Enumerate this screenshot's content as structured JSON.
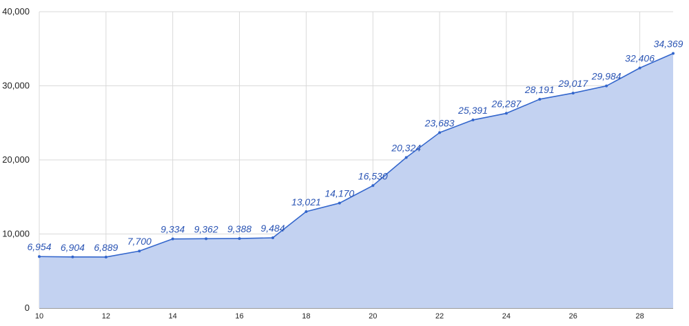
{
  "chart_data": {
    "type": "area",
    "title": "",
    "xlabel": "",
    "ylabel": "",
    "x": [
      10,
      11,
      12,
      13,
      14,
      15,
      16,
      17,
      18,
      19,
      20,
      21,
      22,
      23,
      24,
      25,
      26,
      27,
      28,
      29
    ],
    "series": [
      {
        "values": [
          6954,
          6904,
          6889,
          7700,
          9334,
          9362,
          9388,
          9484,
          13021,
          14170,
          16530,
          20324,
          23683,
          25391,
          26287,
          28191,
          29017,
          29984,
          32406,
          34369
        ],
        "labels": [
          "6,954",
          "6,904",
          "6,889",
          "7,700",
          "9,334",
          "9,362",
          "9,388",
          "9,484",
          "13,021",
          "14,170",
          "16,530",
          "20,324",
          "23,683",
          "25,391",
          "26,287",
          "28,191",
          "29,017",
          "29,984",
          "32,406",
          "34,369"
        ]
      }
    ],
    "xticks": [
      "10",
      "12",
      "14",
      "16",
      "18",
      "20",
      "22",
      "24",
      "26",
      "28"
    ],
    "yticks": [
      "0",
      "10,000",
      "20,000",
      "30,000",
      "40,000"
    ],
    "ylim": [
      0,
      40000
    ],
    "xlim": [
      10,
      29
    ],
    "grid": true,
    "legend": "none",
    "colors": {
      "line": "#3366cc",
      "fill": "#c3d2f1",
      "label": "#2a54b4",
      "grid": "#d9d9d9"
    }
  }
}
